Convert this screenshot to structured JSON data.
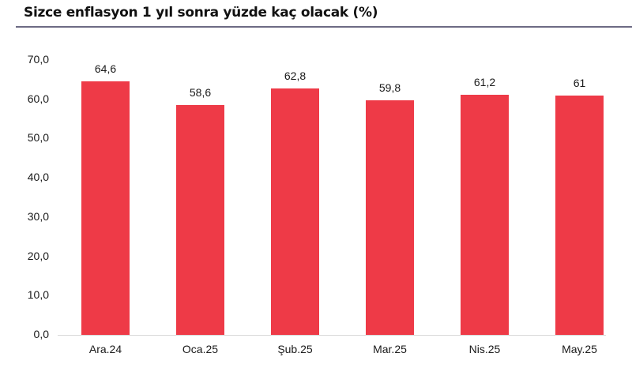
{
  "title": "Sizce enflasyon 1 yıl sonra yüzde kaç olacak (%)",
  "colors": {
    "bar": "#ee3a47",
    "divider": "#6d6b84",
    "axis": "#d9d9d9",
    "text": "#1a1a1a"
  },
  "y_ticks": [
    "70,0",
    "60,0",
    "50,0",
    "40,0",
    "30,0",
    "20,0",
    "10,0",
    "0,0"
  ],
  "bars": [
    {
      "category": "Ara.24",
      "value": 64.6,
      "label": "64,6"
    },
    {
      "category": "Oca.25",
      "value": 58.6,
      "label": "58,6"
    },
    {
      "category": "Şub.25",
      "value": 62.8,
      "label": "62,8"
    },
    {
      "category": "Mar.25",
      "value": 59.8,
      "label": "59,8"
    },
    {
      "category": "Nis.25",
      "value": 61.2,
      "label": "61,2"
    },
    {
      "category": "May.25",
      "value": 61,
      "label": "61"
    }
  ],
  "chart_data": {
    "type": "bar",
    "title": "Sizce enflasyon 1 yıl sonra yüzde kaç olacak (%)",
    "categories": [
      "Ara.24",
      "Oca.25",
      "Şub.25",
      "Mar.25",
      "Nis.25",
      "May.25"
    ],
    "values": [
      64.6,
      58.6,
      62.8,
      59.8,
      61.2,
      61
    ],
    "data_labels": [
      "64,6",
      "58,6",
      "62,8",
      "59,8",
      "61,2",
      "61"
    ],
    "xlabel": "",
    "ylabel": "",
    "ylim": [
      0,
      70
    ],
    "y_tick_labels": [
      "0,0",
      "10,0",
      "20,0",
      "30,0",
      "40,0",
      "50,0",
      "60,0",
      "70,0"
    ],
    "grid": false,
    "legend": null,
    "bar_color": "#ee3a47"
  }
}
